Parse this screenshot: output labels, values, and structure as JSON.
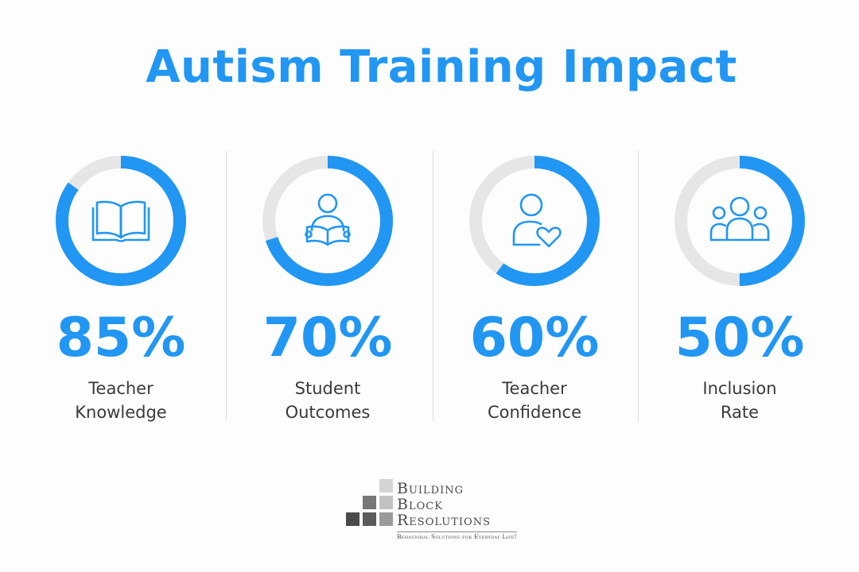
{
  "title": "Autism Training Impact",
  "colors": {
    "accent": "#2196f3",
    "track": "#e6e6e6",
    "label": "#3a3a3a",
    "logo_gray": "#4a4a4a"
  },
  "chart_data": {
    "type": "donut-progress",
    "title": "Autism Training Impact",
    "max": 100,
    "series": [
      {
        "value": 85,
        "display": "85%",
        "label_lines": [
          "Teacher",
          "Knowledge"
        ],
        "icon": "open-book-icon"
      },
      {
        "value": 70,
        "display": "70%",
        "label_lines": [
          "Student",
          "Outcomes"
        ],
        "icon": "student-reading-icon"
      },
      {
        "value": 60,
        "display": "60%",
        "label_lines": [
          "Teacher",
          "Confidence"
        ],
        "icon": "person-heart-icon"
      },
      {
        "value": 50,
        "display": "50%",
        "label_lines": [
          "Inclusion",
          "Rate"
        ],
        "icon": "group-icon"
      }
    ]
  },
  "logo": {
    "line1": "Building",
    "line2": "Block",
    "line3": "Resolutions",
    "tagline": "Behavioral Solutions for Everyday Life!"
  }
}
